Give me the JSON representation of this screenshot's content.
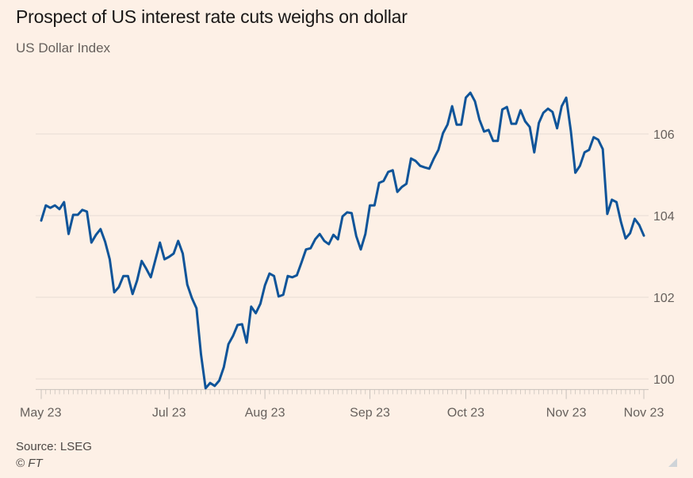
{
  "header": {
    "title": "Prospect of US interest rate cuts weighs on dollar",
    "subtitle": "US Dollar Index"
  },
  "footer": {
    "source": "Source: LSEG",
    "copyright": "© FT"
  },
  "colors": {
    "background": "#fdf0e6",
    "line": "#0f5499",
    "grid": "#e8ddd4",
    "axis": "#c9c2bc",
    "text": "#66605c"
  },
  "chart_data": {
    "type": "line",
    "title": "Prospect of US interest rate cuts weighs on dollar",
    "subtitle": "US Dollar Index",
    "xlabel": "",
    "ylabel": "",
    "ylim": [
      99.75,
      107.3
    ],
    "xlim": [
      0,
      132
    ],
    "grid": true,
    "y_axis_side": "right",
    "yticks": [
      100,
      102,
      104,
      106
    ],
    "xticks": [
      {
        "label": "May 23",
        "x": 0
      },
      {
        "label": "Jul 23",
        "x": 28
      },
      {
        "label": "Aug 23",
        "x": 49
      },
      {
        "label": "Sep 23",
        "x": 72
      },
      {
        "label": "Oct 23",
        "x": 93
      },
      {
        "label": "Nov 23",
        "x": 115
      },
      {
        "label": "Nov 23",
        "x": 132
      }
    ],
    "series": [
      {
        "name": "US Dollar Index",
        "values": [
          103.88,
          104.25,
          104.19,
          104.25,
          104.16,
          104.33,
          103.55,
          104.02,
          104.02,
          104.14,
          104.1,
          103.34,
          103.53,
          103.67,
          103.36,
          102.93,
          102.12,
          102.25,
          102.52,
          102.52,
          102.08,
          102.41,
          102.89,
          102.7,
          102.49,
          102.91,
          103.34,
          102.93,
          102.99,
          103.07,
          103.38,
          103.07,
          102.31,
          101.98,
          101.73,
          100.6,
          99.77,
          99.9,
          99.83,
          99.96,
          100.29,
          100.85,
          101.05,
          101.32,
          101.34,
          100.89,
          101.77,
          101.61,
          101.84,
          102.29,
          102.58,
          102.52,
          102.02,
          102.06,
          102.52,
          102.49,
          102.54,
          102.85,
          103.17,
          103.2,
          103.42,
          103.55,
          103.38,
          103.3,
          103.53,
          103.42,
          103.98,
          104.08,
          104.06,
          103.5,
          103.17,
          103.55,
          104.25,
          104.25,
          104.8,
          104.85,
          105.07,
          105.11,
          104.58,
          104.7,
          104.78,
          105.4,
          105.34,
          105.22,
          105.18,
          105.15,
          105.4,
          105.61,
          106.02,
          106.23,
          106.68,
          106.23,
          106.23,
          106.89,
          107.01,
          106.8,
          106.35,
          106.06,
          106.1,
          105.83,
          105.83,
          106.6,
          106.66,
          106.25,
          106.25,
          106.58,
          106.31,
          106.17,
          105.55,
          106.27,
          106.52,
          106.62,
          106.54,
          106.14,
          106.68,
          106.89,
          106.08,
          105.05,
          105.22,
          105.55,
          105.61,
          105.92,
          105.86,
          105.63,
          104.04,
          104.39,
          104.33,
          103.84,
          103.44,
          103.57,
          103.92,
          103.77,
          103.51
        ]
      }
    ]
  }
}
